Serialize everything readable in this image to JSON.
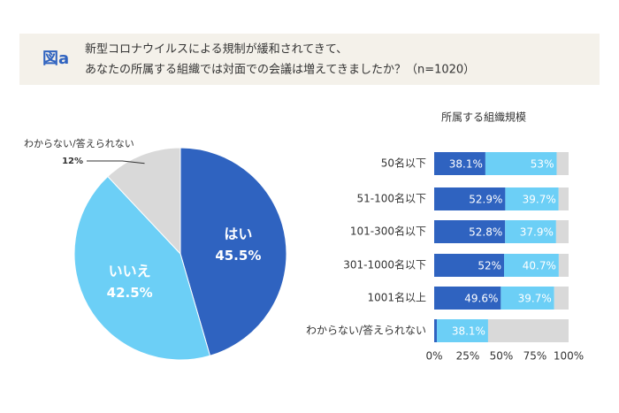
{
  "header": {
    "label": "図a",
    "title_lines": [
      "新型コロナウイルスによる規制が緩和されてきて、",
      "あなたの所属する組織では対面での会議は増えてきましたか？（n=1020）"
    ]
  },
  "chart_data": [
    {
      "type": "pie",
      "categories": [
        "はい",
        "いいえ",
        "わからない/答えられない"
      ],
      "values": [
        45.5,
        42.5,
        12
      ],
      "value_labels": [
        "45.5%",
        "42.5%",
        "12%"
      ],
      "colors": [
        "#2f63c0",
        "#6ccff6",
        "#d9d9d9"
      ]
    },
    {
      "type": "stacked-barh",
      "title": "所属する組織規模",
      "categories": [
        "50名以下",
        "51-100名以下",
        "101-300名以下",
        "301-1000名以下",
        "1001名以上",
        "わからない/答えられない"
      ],
      "series": [
        {
          "color": "#2f63c0",
          "values": [
            38.1,
            52.9,
            52.8,
            52,
            49.6,
            2
          ],
          "value_labels": [
            "38.1%",
            "52.9%",
            "52.8%",
            "52%",
            "49.6%",
            null
          ]
        },
        {
          "color": "#6ccff6",
          "values": [
            53,
            39.7,
            37.9,
            40.7,
            39.7,
            38.1
          ],
          "value_labels": [
            "53%",
            "39.7%",
            "37.9%",
            "40.7%",
            "39.7%",
            "38.1%"
          ]
        },
        {
          "color": "#d9d9d9",
          "values": [
            8.9,
            7.4,
            9.3,
            7.3,
            10.7,
            59.9
          ]
        }
      ],
      "xlim": [
        0,
        100
      ],
      "xticks": [
        {
          "value": 0,
          "label": "0%"
        },
        {
          "value": 25,
          "label": "25%"
        },
        {
          "value": 50,
          "label": "50%"
        },
        {
          "value": 75,
          "label": "75%"
        },
        {
          "value": 100,
          "label": "100%"
        }
      ],
      "grid": false
    }
  ]
}
